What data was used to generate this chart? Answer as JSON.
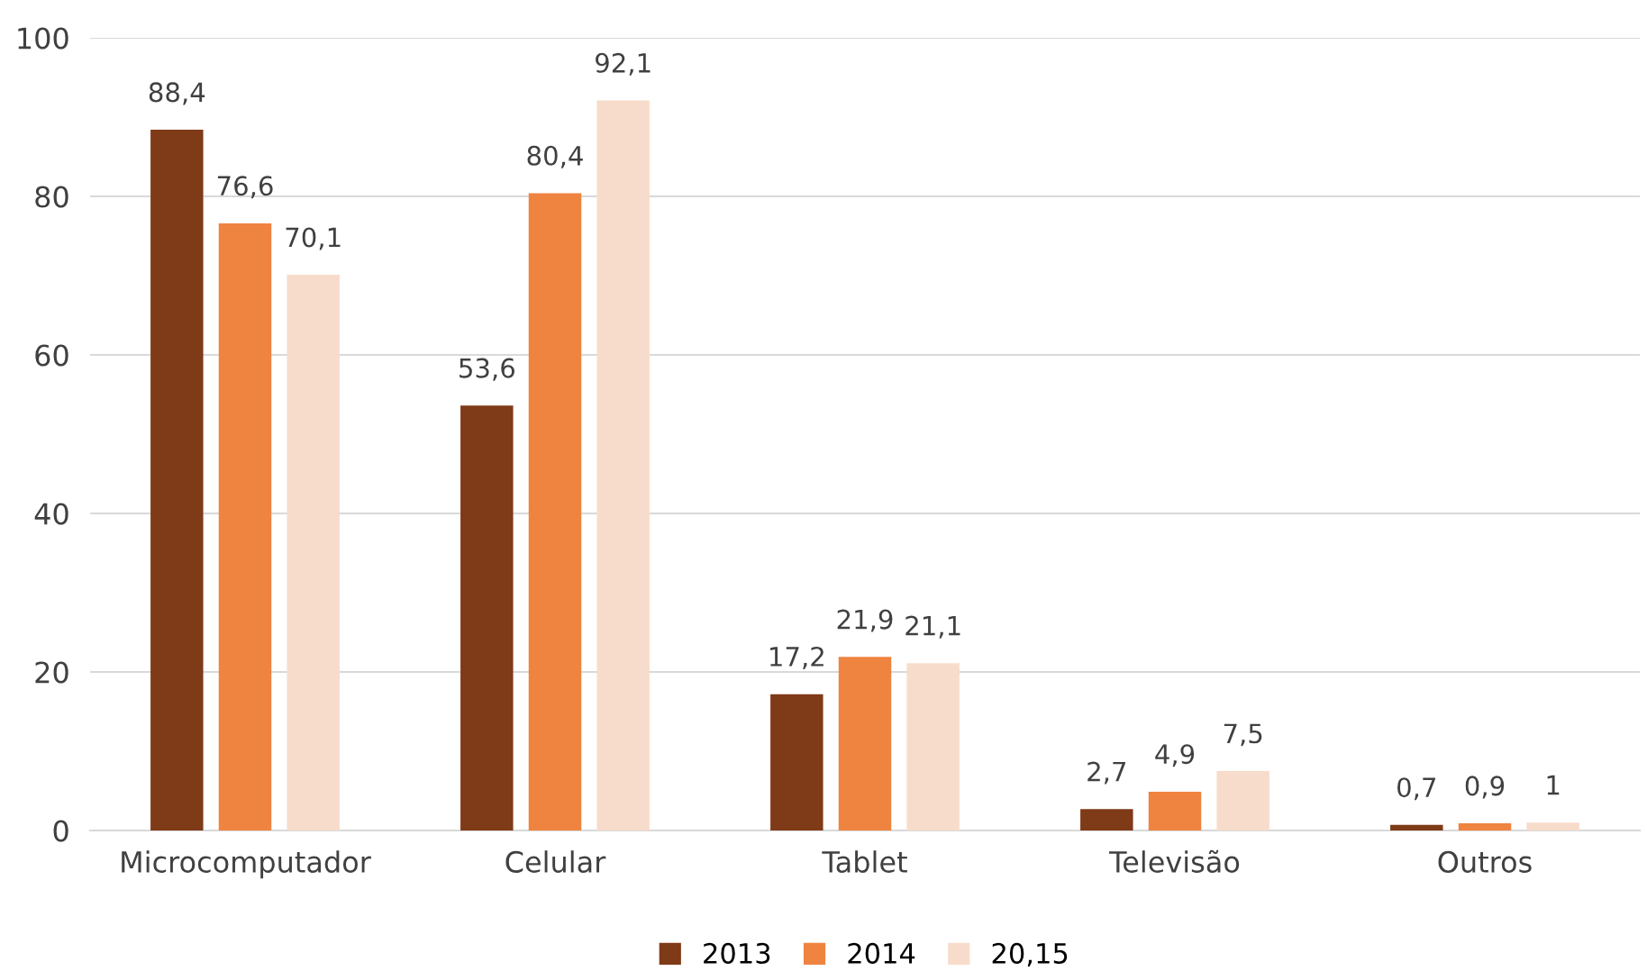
{
  "chart_data": {
    "type": "bar",
    "categories": [
      "Microcomputador",
      "Celular",
      "Tablet",
      "Televisão",
      "Outros"
    ],
    "series": [
      {
        "name": "2013",
        "color": "#7f3a17",
        "values": [
          88.4,
          53.6,
          17.2,
          2.7,
          0.7
        ],
        "value_labels": [
          "88,4",
          "53,6",
          "17,2",
          "2,7",
          "0,7"
        ]
      },
      {
        "name": "2014",
        "color": "#ef8340",
        "values": [
          76.6,
          80.4,
          21.9,
          4.9,
          0.9
        ],
        "value_labels": [
          "76,6",
          "80,4",
          "21,9",
          "4,9",
          "0,9"
        ]
      },
      {
        "name": "20,15",
        "color": "#f8dccb",
        "values": [
          70.1,
          92.1,
          21.1,
          7.5,
          1
        ],
        "value_labels": [
          "70,1",
          "92,1",
          "21,1",
          "7,5",
          "1"
        ]
      }
    ],
    "ylim": [
      0,
      100
    ],
    "yticks": [
      0,
      20,
      40,
      60,
      80,
      100
    ],
    "grid": "y",
    "legend": "bottom"
  }
}
